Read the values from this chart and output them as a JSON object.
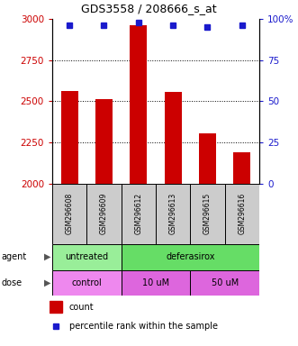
{
  "title": "GDS3558 / 208666_s_at",
  "samples": [
    "GSM296608",
    "GSM296609",
    "GSM296612",
    "GSM296613",
    "GSM296615",
    "GSM296616"
  ],
  "counts": [
    2560,
    2510,
    2960,
    2555,
    2305,
    2190
  ],
  "percentiles": [
    96,
    96,
    98,
    96,
    95,
    96
  ],
  "ylim_left": [
    2000,
    3000
  ],
  "ylim_right": [
    0,
    100
  ],
  "yticks_left": [
    2000,
    2250,
    2500,
    2750,
    3000
  ],
  "yticks_right": [
    0,
    25,
    50,
    75,
    100
  ],
  "bar_color": "#cc0000",
  "dot_color": "#1a1acc",
  "bar_width": 0.5,
  "agent_groups": [
    {
      "label": "untreated",
      "start": 0,
      "end": 2,
      "color": "#99ee99"
    },
    {
      "label": "deferasirox",
      "start": 2,
      "end": 6,
      "color": "#66dd66"
    }
  ],
  "dose_groups": [
    {
      "label": "control",
      "start": 0,
      "end": 2,
      "color": "#ee88ee"
    },
    {
      "label": "10 uM",
      "start": 2,
      "end": 4,
      "color": "#dd66dd"
    },
    {
      "label": "50 uM",
      "start": 4,
      "end": 6,
      "color": "#dd66dd"
    }
  ],
  "legend_count_color": "#cc0000",
  "legend_dot_color": "#1a1acc",
  "tick_color_left": "#cc0000",
  "tick_color_right": "#1a1acc",
  "sample_box_color": "#cccccc",
  "gridline_color": "#555555",
  "title_fontsize": 9,
  "tick_fontsize": 7.5,
  "sample_fontsize": 5.5,
  "annot_fontsize": 7,
  "legend_fontsize": 7
}
